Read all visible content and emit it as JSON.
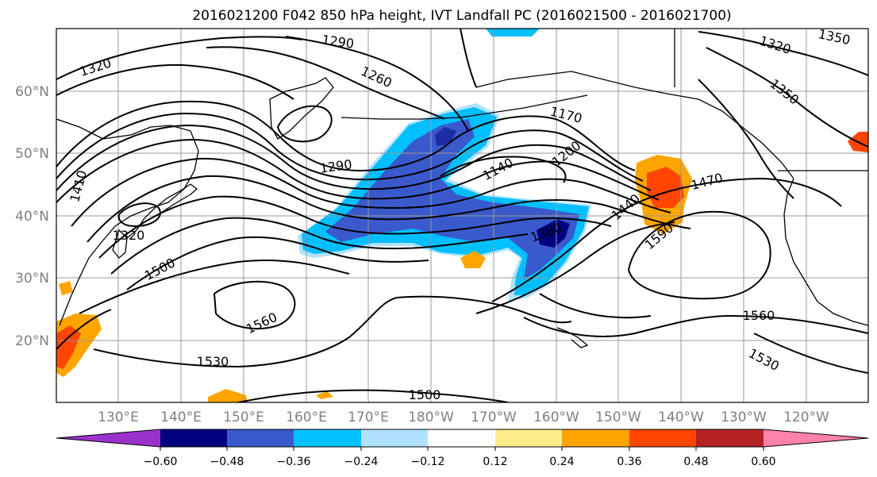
{
  "title": "2016021200 F042 850 hPa height, IVT Landfall PC (2016021500 - 2016021700)",
  "lon_labels": [
    "130°E",
    "140°E",
    "150°E",
    "160°E",
    "170°E",
    "180°W",
    "170°W",
    "160°W",
    "150°W",
    "140°W",
    "130°W",
    "120°W"
  ],
  "lat_labels": [
    "60°N",
    "50°N",
    "40°N",
    "30°N",
    "20°N"
  ],
  "colorbar": {
    "colors": [
      "#9932cc",
      "#000080",
      "#3a5acc",
      "#00bfff",
      "#b0e2ff",
      "#ffffff",
      "#ffed8a",
      "#ffa500",
      "#ff4500",
      "#b22222",
      "#ff82ab"
    ],
    "tick_labels": [
      "−0.60",
      "−0.48",
      "−0.36",
      "−0.24",
      "−0.12",
      "0.12",
      "0.24",
      "0.36",
      "0.48",
      "0.60"
    ]
  },
  "contour_labels": [
    "1290",
    "1320",
    "1320",
    "1260",
    "1350",
    "1350",
    "1170",
    "1200",
    "1140",
    "1290",
    "1410",
    "1320",
    "1500",
    "1440",
    "1470",
    "1380",
    "1590",
    "1560",
    "1560",
    "1530",
    "1530",
    "1500"
  ]
}
